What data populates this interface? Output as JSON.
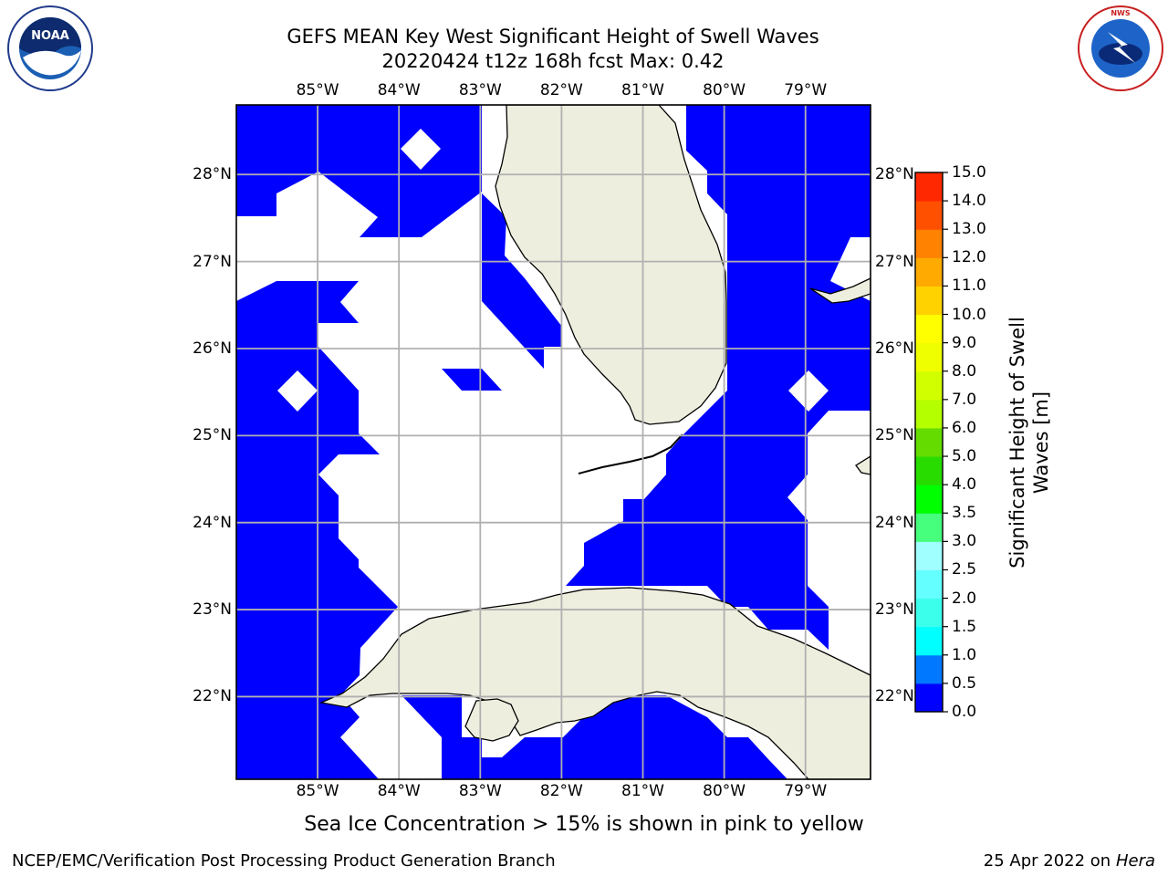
{
  "header": {
    "title_line1": "GEFS MEAN Key West Significant Height of Swell Waves",
    "title_line2": "20220424 t12z 168h fcst   Max: 0.42"
  },
  "logos": {
    "left_text": "NOAA",
    "left_ring_text": "NATIONAL OCEANIC AND ATMOSPHERIC ADMINISTRATION · U.S. DEPARTMENT OF COMMERCE",
    "right_ring_text": "NATIONAL WEATHER SERVICE"
  },
  "map": {
    "lon_labels": [
      "85°W",
      "84°W",
      "83°W",
      "82°W",
      "81°W",
      "80°W",
      "79°W"
    ],
    "lat_labels_left": [
      "28°N",
      "27°N",
      "26°N",
      "25°N",
      "24°N",
      "23°N",
      "22°N"
    ],
    "lat_labels_right": [
      "28°N",
      "27°N",
      "26°N",
      "25°N",
      "24°N",
      "23°N",
      "22°N"
    ],
    "lon_range": [
      -86.0,
      -78.2
    ],
    "lat_range": [
      21.05,
      28.8
    ],
    "colors": {
      "ocean_low": "#0000ff",
      "land": "#eeeedf",
      "grid": "#b0b0b0"
    }
  },
  "colorbar": {
    "label": "Significant Height of Swell Waves [m]",
    "label_line1": "Significant Height of Swell",
    "label_line2": "Waves [m]",
    "tick_labels": [
      "0.0",
      "0.5",
      "1.0",
      "1.5",
      "2.0",
      "2.5",
      "3.0",
      "3.5",
      "4.0",
      "5.0",
      "6.0",
      "7.0",
      "8.0",
      "9.0",
      "10.0",
      "11.0",
      "12.0",
      "13.0",
      "14.0",
      "15.0"
    ],
    "colors": [
      "#0000ff",
      "#0078ff",
      "#00ffff",
      "#3cffeb",
      "#64ffff",
      "#a0ffff",
      "#46ff7d",
      "#00ff00",
      "#28dc00",
      "#64dc00",
      "#b4ff00",
      "#d2ff00",
      "#f0ff00",
      "#ffff00",
      "#ffd200",
      "#ffaa00",
      "#ff8200",
      "#ff5000",
      "#ff2800",
      "#ff0000"
    ]
  },
  "footer": {
    "note": "Sea Ice Concentration > 15% is shown in pink to yellow",
    "left": "NCEP/EMC/Verification Post Processing Product Generation Branch",
    "right_date": "25 Apr 2022 on ",
    "right_host": "Hera"
  }
}
